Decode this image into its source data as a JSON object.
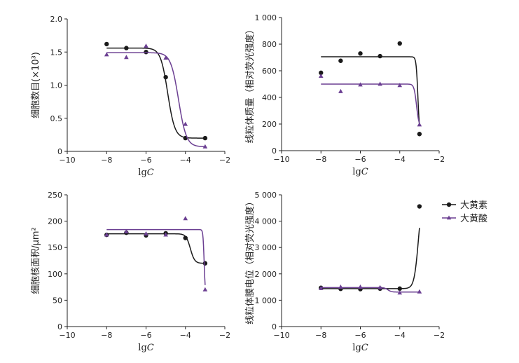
{
  "legend": {
    "items": [
      {
        "label": "大黄素",
        "color": "#1a1a1a",
        "marker": "circle"
      },
      {
        "label": "大黄酸",
        "color": "#6b3f92",
        "marker": "triangle"
      }
    ]
  },
  "chart_data": [
    {
      "type": "scatter",
      "xlabel_prefix": "lg",
      "xlabel_var": "C",
      "ylabel": "细胞数目(×10³)",
      "xlim": [
        -10,
        -2
      ],
      "ylim": [
        0,
        2.0
      ],
      "xticks": [
        -10,
        -8,
        -6,
        -4,
        -2
      ],
      "yticks": [
        0,
        0.5,
        1.0,
        1.5,
        2.0
      ],
      "ytick_labels": [
        "0",
        "0.5",
        "1.0",
        "1.5",
        "2.0"
      ],
      "series": [
        {
          "name": "大黄素",
          "x": [
            -8,
            -7,
            -6,
            -5,
            -4,
            -3
          ],
          "y": [
            1.62,
            1.56,
            1.5,
            1.12,
            0.2,
            0.2
          ],
          "fit": {
            "top": 1.56,
            "bottom": 0.2,
            "ec50": -4.9,
            "hill": 2.4
          }
        },
        {
          "name": "大黄酸",
          "x": [
            -8,
            -7,
            -6,
            -5,
            -4,
            -3
          ],
          "y": [
            1.46,
            1.42,
            1.59,
            1.41,
            0.41,
            0.07
          ],
          "fit": {
            "top": 1.49,
            "bottom": 0.07,
            "ec50": -4.35,
            "hill": 2.2
          }
        }
      ]
    },
    {
      "type": "scatter",
      "xlabel_prefix": "lg",
      "xlabel_var": "C",
      "ylabel": "线粒体质量（相对荧光强度）",
      "xlim": [
        -10,
        -2
      ],
      "ylim": [
        0,
        1000
      ],
      "xticks": [
        -10,
        -8,
        -6,
        -4,
        -2
      ],
      "yticks": [
        0,
        200,
        400,
        600,
        800,
        1000
      ],
      "ytick_labels": [
        "0",
        "200",
        "400",
        "600",
        "800",
        "1 000"
      ],
      "series": [
        {
          "name": "大黄素",
          "x": [
            -8,
            -7,
            -6,
            -5,
            -4,
            -3
          ],
          "y": [
            585,
            675,
            730,
            710,
            805,
            125
          ],
          "fit": {
            "top": 705,
            "bottom": 110,
            "ec50": -3.08,
            "hill": 10
          }
        },
        {
          "name": "大黄酸",
          "x": [
            -8,
            -7,
            -6,
            -5,
            -4,
            -3
          ],
          "y": [
            560,
            445,
            495,
            500,
            490,
            195
          ],
          "fit": {
            "top": 500,
            "bottom": 180,
            "ec50": -3.15,
            "hill": 7
          }
        }
      ]
    },
    {
      "type": "scatter",
      "xlabel_prefix": "lg",
      "xlabel_var": "C",
      "ylabel": "细胞核面积/μm²",
      "xlim": [
        -10,
        -2
      ],
      "ylim": [
        0,
        250
      ],
      "xticks": [
        -10,
        -8,
        -6,
        -4,
        -2
      ],
      "yticks": [
        0,
        50,
        100,
        150,
        200,
        250
      ],
      "ytick_labels": [
        "0",
        "50",
        "100",
        "150",
        "200",
        "250"
      ],
      "series": [
        {
          "name": "大黄素",
          "x": [
            -8,
            -7,
            -6,
            -5,
            -4,
            -3
          ],
          "y": [
            174,
            178,
            173,
            177,
            168,
            120
          ],
          "fit": {
            "top": 176,
            "bottom": 120,
            "ec50": -3.75,
            "hill": 4
          }
        },
        {
          "name": "大黄酸",
          "x": [
            -8,
            -7,
            -6,
            -5,
            -4,
            -3
          ],
          "y": [
            174,
            180,
            176,
            174,
            205,
            70
          ],
          "fit": {
            "top": 184,
            "bottom": 60,
            "ec50": -3.05,
            "hill": 15
          }
        }
      ]
    },
    {
      "type": "scatter",
      "xlabel_prefix": "lg",
      "xlabel_var": "C",
      "ylabel": "线粒体膜电位（相对荧光强度）",
      "xlim": [
        -10,
        -2
      ],
      "ylim": [
        0,
        5000
      ],
      "xticks": [
        -10,
        -8,
        -6,
        -4,
        -2
      ],
      "yticks": [
        0,
        1000,
        2000,
        3000,
        4000,
        5000
      ],
      "ytick_labels": [
        "0",
        "1 000",
        "2 000",
        "3 000",
        "4 000",
        "5 000"
      ],
      "series": [
        {
          "name": "大黄素",
          "x": [
            -8,
            -7,
            -6,
            -5,
            -4,
            -3
          ],
          "y": [
            1470,
            1430,
            1420,
            1440,
            1440,
            4560
          ],
          "fit": {
            "top": 1440,
            "bottom": 5200,
            "ec50": -3.05,
            "hill": 4
          }
        },
        {
          "name": "大黄酸",
          "x": [
            -8,
            -7,
            -6,
            -5,
            -4,
            -3
          ],
          "y": [
            1450,
            1500,
            1500,
            1480,
            1280,
            1320
          ],
          "fit": {
            "top": 1480,
            "bottom": 1310,
            "ec50": -4.6,
            "hill": 5
          }
        }
      ]
    }
  ]
}
